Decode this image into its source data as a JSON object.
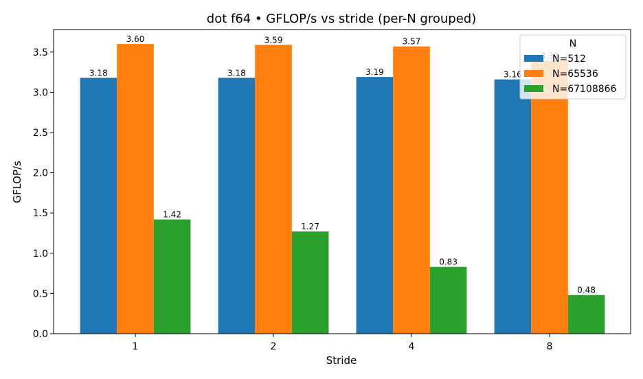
{
  "chart_data": {
    "type": "bar",
    "title": "dot f64 • GFLOP/s vs stride (per-N grouped)",
    "xlabel": "Stride",
    "ylabel": "GFLOP/s",
    "categories": [
      "1",
      "2",
      "4",
      "8"
    ],
    "ylim": [
      0,
      3.78
    ],
    "yticks": [
      "0.0",
      "0.5",
      "1.0",
      "1.5",
      "2.0",
      "2.5",
      "3.0",
      "3.5"
    ],
    "grid": false,
    "legend": {
      "title": "N",
      "placement": "top-right"
    },
    "series": [
      {
        "name": "N=512",
        "color": "#1f77b4",
        "values": [
          3.18,
          3.18,
          3.19,
          3.16
        ],
        "labels": [
          "3.18",
          "3.18",
          "3.19",
          "3.16"
        ]
      },
      {
        "name": "N=65536",
        "color": "#ff7f0e",
        "values": [
          3.6,
          3.59,
          3.57,
          3.39
        ],
        "labels": [
          "3.60",
          "3.59",
          "3.57",
          "3.39"
        ]
      },
      {
        "name": "N=67108866",
        "color": "#2ca02c",
        "values": [
          1.42,
          1.27,
          0.83,
          0.48
        ],
        "labels": [
          "1.42",
          "1.27",
          "0.83",
          "0.48"
        ]
      }
    ]
  }
}
